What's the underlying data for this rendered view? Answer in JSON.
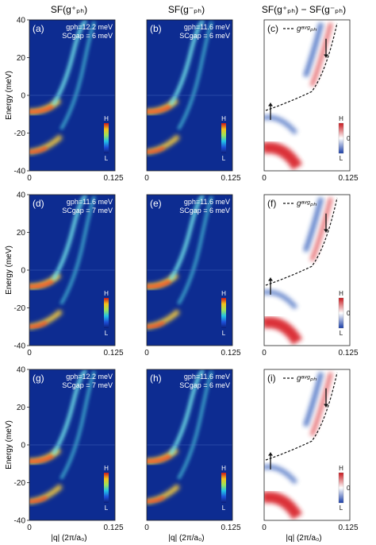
{
  "column_titles": [
    "SF(g⁺ₚₕ)",
    "SF(g⁻ₚₕ)",
    "SF(g⁺ₚₕ) − SF(g⁻ₚₕ)"
  ],
  "y_axis_label": "Energy (meV)",
  "x_axis_label": "|q| (2π/a₀)",
  "y_ticks": [
    "40",
    "20",
    "0",
    "-20",
    "-40"
  ],
  "x_ticks": [
    "0",
    "0.125"
  ],
  "colorbar_labels": {
    "high": "H",
    "low": "L",
    "zero": "0"
  },
  "legend_label": "gᵃᵛᵍₚₕ",
  "panels": [
    {
      "tag": "(a)",
      "line1": "gph=12.2 meV",
      "line2": "SCgap = 6 meV"
    },
    {
      "tag": "(b)",
      "line1": "gph=11.6 meV",
      "line2": "SCgap = 6 meV"
    },
    {
      "tag": "(c)",
      "line1": "",
      "line2": ""
    },
    {
      "tag": "(d)",
      "line1": "gph=11.6 meV",
      "line2": "SCgap = 7 meV"
    },
    {
      "tag": "(e)",
      "line1": "gph=11.6 meV",
      "line2": "SCgap = 6 meV"
    },
    {
      "tag": "(f)",
      "line1": "",
      "line2": ""
    },
    {
      "tag": "(g)",
      "line1": "gph=12.2 meV",
      "line2": "SCgap = 7 meV"
    },
    {
      "tag": "(h)",
      "line1": "gph=11.6 meV",
      "line2": "SCgap = 6 meV"
    },
    {
      "tag": "(i)",
      "line1": "",
      "line2": ""
    }
  ],
  "colors": {
    "map_bg": "#0d2c91",
    "diff_red": "#d9272e",
    "diff_blue": "#2a56b8"
  }
}
